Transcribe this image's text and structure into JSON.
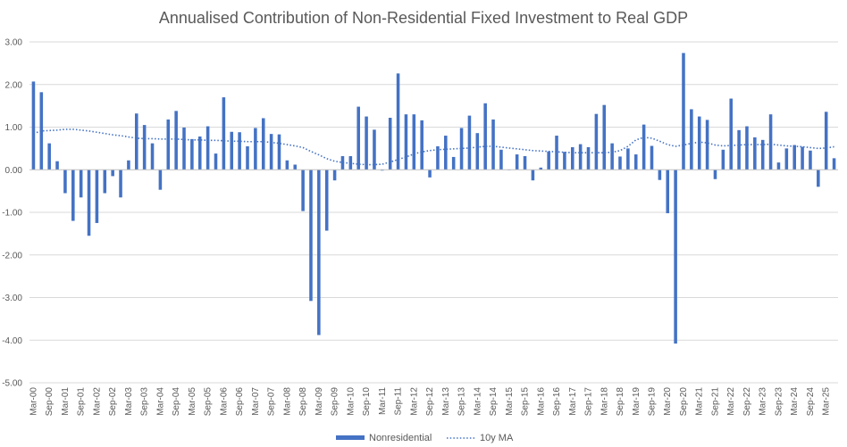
{
  "chart_data": {
    "type": "bar",
    "title": "Annualised Contribution of Non-Residential Fixed Investment to Real GDP",
    "xlabel": "",
    "ylabel": "",
    "ylim": [
      -5.0,
      3.0
    ],
    "yticks": [
      "3.00",
      "2.00",
      "1.00",
      "0.00",
      "-1.00",
      "-2.00",
      "-3.00",
      "-4.00",
      "-5.00"
    ],
    "ytick_values": [
      3,
      2,
      1,
      0,
      -1,
      -2,
      -3,
      -4,
      -5
    ],
    "grid": true,
    "legend_position": "bottom",
    "colors": {
      "bar": "#4472C4",
      "line": "#4472C4",
      "grid": "#D9D9D9",
      "axis": "#BFBFBF"
    },
    "x_tick_labels": [
      "Mar-00",
      "Sep-00",
      "Mar-01",
      "Sep-01",
      "Mar-02",
      "Sep-02",
      "Mar-03",
      "Sep-03",
      "Mar-04",
      "Sep-04",
      "Mar-05",
      "Sep-05",
      "Mar-06",
      "Sep-06",
      "Mar-07",
      "Sep-07",
      "Mar-08",
      "Sep-08",
      "Mar-09",
      "Sep-09",
      "Mar-10",
      "Sep-10",
      "Mar-11",
      "Sep-11",
      "Mar-12",
      "Sep-12",
      "Mar-13",
      "Sep-13",
      "Mar-14",
      "Sep-14",
      "Mar-15",
      "Sep-15",
      "Mar-16",
      "Sep-16",
      "Mar-17",
      "Sep-17",
      "Mar-18",
      "Sep-18",
      "Mar-19",
      "Sep-19",
      "Mar-20",
      "Sep-20",
      "Mar-21",
      "Sep-21",
      "Mar-22",
      "Sep-22",
      "Mar-23",
      "Sep-23",
      "Mar-24",
      "Sep-24",
      "Mar-25"
    ],
    "series": [
      {
        "name": "Nonresidential",
        "kind": "bar",
        "values": [
          2.07,
          1.82,
          0.62,
          0.2,
          -0.55,
          -1.2,
          -0.65,
          -1.55,
          -1.25,
          -0.55,
          -0.15,
          -0.65,
          0.22,
          1.32,
          1.05,
          0.62,
          -0.47,
          1.18,
          1.38,
          0.99,
          0.72,
          0.78,
          1.02,
          0.38,
          1.7,
          0.89,
          0.88,
          0.55,
          0.98,
          1.21,
          0.84,
          0.83,
          0.22,
          0.12,
          -0.97,
          -3.08,
          -3.88,
          -1.43,
          -0.25,
          0.32,
          0.32,
          1.48,
          1.25,
          0.94,
          -0.02,
          1.22,
          2.26,
          1.3,
          1.3,
          1.16,
          -0.18,
          0.55,
          0.8,
          0.3,
          0.98,
          1.27,
          0.86,
          1.56,
          1.18,
          0.47,
          0.0,
          0.36,
          0.32,
          -0.25,
          0.05,
          0.43,
          0.8,
          0.42,
          0.53,
          0.6,
          0.53,
          1.31,
          1.52,
          0.62,
          0.31,
          0.5,
          0.36,
          1.06,
          0.56,
          -0.24,
          -1.02,
          -4.08,
          2.74,
          1.42,
          1.25,
          1.17,
          -0.22,
          0.47,
          1.67,
          0.93,
          1.02,
          0.76,
          0.7,
          1.3,
          0.17,
          0.5,
          0.58,
          0.54,
          0.45,
          -0.4,
          1.36,
          0.27
        ]
      },
      {
        "name": "10y MA",
        "kind": "line",
        "values": [
          0.85,
          0.91,
          0.92,
          0.93,
          0.95,
          0.95,
          0.93,
          0.91,
          0.88,
          0.85,
          0.82,
          0.8,
          0.77,
          0.74,
          0.73,
          0.73,
          0.72,
          0.72,
          0.72,
          0.71,
          0.7,
          0.7,
          0.69,
          0.69,
          0.68,
          0.67,
          0.67,
          0.66,
          0.66,
          0.66,
          0.64,
          0.62,
          0.59,
          0.56,
          0.52,
          0.43,
          0.35,
          0.26,
          0.2,
          0.17,
          0.15,
          0.13,
          0.12,
          0.12,
          0.13,
          0.18,
          0.24,
          0.3,
          0.37,
          0.42,
          0.45,
          0.47,
          0.48,
          0.49,
          0.5,
          0.51,
          0.53,
          0.55,
          0.55,
          0.53,
          0.51,
          0.49,
          0.47,
          0.45,
          0.44,
          0.43,
          0.42,
          0.41,
          0.4,
          0.4,
          0.4,
          0.4,
          0.4,
          0.41,
          0.45,
          0.55,
          0.7,
          0.76,
          0.74,
          0.67,
          0.59,
          0.55,
          0.58,
          0.62,
          0.65,
          0.63,
          0.58,
          0.56,
          0.57,
          0.58,
          0.59,
          0.59,
          0.59,
          0.6,
          0.58,
          0.56,
          0.55,
          0.54,
          0.52,
          0.5,
          0.51,
          0.54
        ]
      }
    ]
  }
}
